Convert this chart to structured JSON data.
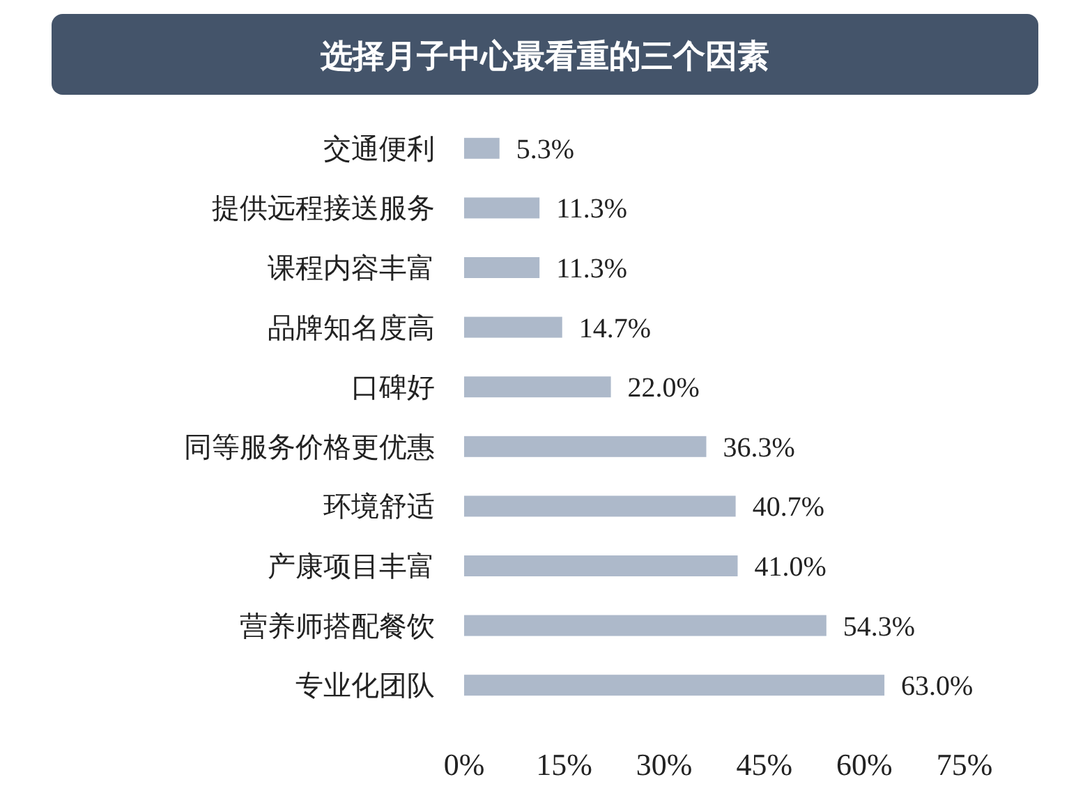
{
  "chart_data": {
    "type": "bar",
    "orientation": "horizontal",
    "title": "选择月子中心最看重的三个因素",
    "categories": [
      "交通便利",
      "提供远程接送服务",
      "课程内容丰富",
      "品牌知名度高",
      "口碑好",
      "同等服务价格更优惠",
      "环境舒适",
      "产康项目丰富",
      "营养师搭配餐饮",
      "专业化团队"
    ],
    "values": [
      5.3,
      11.3,
      11.3,
      14.7,
      22.0,
      36.3,
      40.7,
      41.0,
      54.3,
      63.0
    ],
    "value_labels": [
      "5.3%",
      "11.3%",
      "11.3%",
      "14.7%",
      "22.0%",
      "36.3%",
      "40.7%",
      "41.0%",
      "54.3%",
      "63.0%"
    ],
    "color": "#adb9ca",
    "xlim": [
      0,
      75
    ],
    "xticks": [
      {
        "value": 0,
        "label": "0%"
      },
      {
        "value": 15,
        "label": "15%"
      },
      {
        "value": 30,
        "label": "30%"
      },
      {
        "value": 45,
        "label": "45%"
      },
      {
        "value": 60,
        "label": "60%"
      },
      {
        "value": 75,
        "label": "75%"
      }
    ],
    "grid": false
  }
}
